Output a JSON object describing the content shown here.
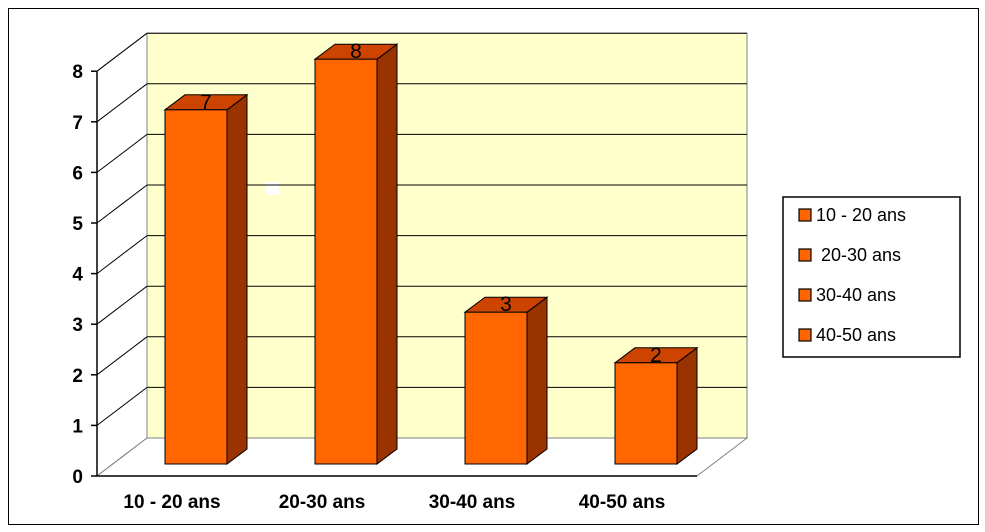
{
  "chart_data": {
    "type": "bar",
    "three_d": true,
    "categories": [
      "10 - 20 ans",
      "20-30 ans",
      "30-40 ans",
      "40-50 ans"
    ],
    "values": [
      7,
      8,
      3,
      2
    ],
    "data_labels": [
      "7",
      "8",
      "3",
      "2"
    ],
    "y_ticks": [
      "0",
      "1",
      "2",
      "3",
      "4",
      "5",
      "6",
      "7",
      "8"
    ],
    "ylim": [
      0,
      8
    ],
    "grid": true,
    "legend_position": "right",
    "legend": [
      "10 - 20 ans",
      " 20-30 ans",
      "30-40 ans",
      "40-50 ans"
    ],
    "colors": {
      "bar_front": "#FF6600",
      "bar_side": "#993300",
      "bar_top": "#CC4400",
      "wall": "#FFFFCC",
      "gridline": "#000000"
    }
  }
}
